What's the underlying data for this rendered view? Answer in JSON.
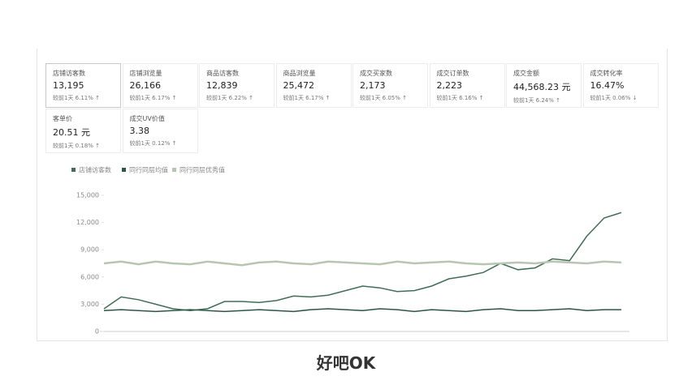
{
  "metrics": [
    {
      "label": "店铺访客数",
      "value": "13,195",
      "compare": "较前1天 6.11% ↑"
    },
    {
      "label": "店铺浏览量",
      "value": "26,166",
      "compare": "较前1天 6.17% ↑"
    },
    {
      "label": "商品访客数",
      "value": "12,839",
      "compare": "较前1天 6.22% ↑"
    },
    {
      "label": "商品浏览量",
      "value": "25,472",
      "compare": "较前1天 6.17% ↑"
    },
    {
      "label": "成交买家数",
      "value": "2,173",
      "compare": "较前1天 6.05% ↑"
    },
    {
      "label": "成交订单数",
      "value": "2,223",
      "compare": "较前1天 6.16% ↑"
    },
    {
      "label": "成交金额",
      "value": "44,568.23 元",
      "compare": "较前1天 6.24% ↑"
    },
    {
      "label": "成交转化率",
      "value": "16.47%",
      "compare": "较前1天 0.06% ↓"
    },
    {
      "label": "客单价",
      "value": "20.51 元",
      "compare": "较前1天 0.18% ↑"
    },
    {
      "label": "成交UV价值",
      "value": "3.38",
      "compare": "较前1天 0.12% ↑"
    }
  ],
  "chart_data": {
    "type": "line",
    "series": [
      {
        "name": "店铺访客数",
        "color": "#3f6e55",
        "values": [
          2500,
          3800,
          3500,
          3000,
          2500,
          2300,
          2500,
          3300,
          3300,
          3200,
          3400,
          3900,
          3800,
          4000,
          4500,
          5000,
          4800,
          4400,
          4500,
          5000,
          5800,
          6100,
          6500,
          7500,
          6800,
          7000,
          8000,
          7800,
          10500,
          12500,
          13100
        ]
      },
      {
        "name": "同行同层均值",
        "color": "#2c5646",
        "values": [
          2300,
          2400,
          2300,
          2200,
          2300,
          2400,
          2300,
          2200,
          2300,
          2400,
          2300,
          2200,
          2400,
          2500,
          2400,
          2300,
          2500,
          2400,
          2200,
          2400,
          2300,
          2200,
          2400,
          2500,
          2300,
          2300,
          2400,
          2500,
          2300,
          2400,
          2400
        ]
      },
      {
        "name": "同行同层优秀值",
        "color": "#b9c5b3",
        "values": [
          7500,
          7700,
          7400,
          7700,
          7500,
          7400,
          7700,
          7500,
          7300,
          7600,
          7700,
          7500,
          7400,
          7700,
          7600,
          7500,
          7400,
          7700,
          7500,
          7600,
          7700,
          7500,
          7400,
          7500,
          7600,
          7500,
          7700,
          7600,
          7500,
          7700,
          7600
        ]
      }
    ],
    "ylim": [
      0,
      15000
    ],
    "yticks": [
      0,
      {
        "value": 3000,
        "label": "3,000"
      },
      {
        "value": 6000,
        "label": "6,000"
      },
      {
        "value": 9000,
        "label": "9,000"
      },
      {
        "value": 12000,
        "label": "12,000"
      },
      {
        "value": 15000,
        "label": "15,000"
      }
    ],
    "grid": false
  },
  "caption": "好吧OK"
}
